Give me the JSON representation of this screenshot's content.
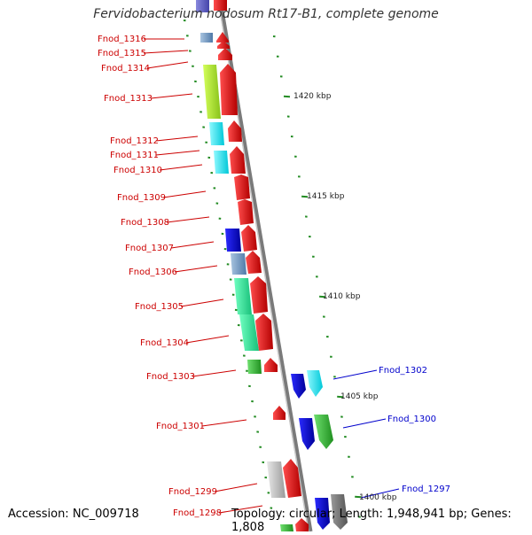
{
  "title": "Fervidobacterium nodosum Rt17-B1, complete genome",
  "accession": "Accession: NC_009718",
  "topology": "Topology: circular; Length: 1,948,941 bp; Genes: 1,808",
  "colors": {
    "forward_label": "#cc0000",
    "reverse_label": "#0000cc",
    "tick": "#228b22",
    "backbone": "#7a7a7a"
  },
  "ticks": [
    {
      "label": "1420 kbp"
    },
    {
      "label": "1415 kbp"
    },
    {
      "label": "1410 kbp"
    },
    {
      "label": "1405 kbp"
    },
    {
      "label": "1400 kbp"
    }
  ],
  "left_genes": [
    "Fnod_1316",
    "Fnod_1315",
    "Fnod_1314",
    "Fnod_1313",
    "Fnod_1312",
    "Fnod_1311",
    "Fnod_1310",
    "Fnod_1309",
    "Fnod_1308",
    "Fnod_1307",
    "Fnod_1306",
    "Fnod_1305",
    "Fnod_1304",
    "Fnod_1303",
    "Fnod_1301",
    "Fnod_1299",
    "Fnod_1298"
  ],
  "right_genes": [
    "Fnod_1302",
    "Fnod_1300",
    "Fnod_1297"
  ]
}
